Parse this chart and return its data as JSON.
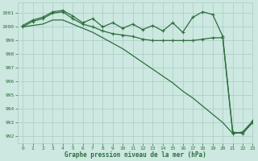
{
  "bg_color": "#cce8e0",
  "grid_color": "#a8ccc4",
  "line_color": "#2d6e3e",
  "xlabel": "Graphe pression niveau de la mer (hPa)",
  "xlim": [
    -0.5,
    23
  ],
  "ylim": [
    991.5,
    1001.8
  ],
  "yticks": [
    992,
    993,
    994,
    995,
    996,
    997,
    998,
    999,
    1000,
    1001
  ],
  "xticks": [
    0,
    1,
    2,
    3,
    4,
    5,
    6,
    7,
    8,
    9,
    10,
    11,
    12,
    13,
    14,
    15,
    16,
    17,
    18,
    19,
    20,
    21,
    22,
    23
  ],
  "s1_x": [
    0,
    1,
    2,
    3,
    4,
    5,
    6,
    7,
    8,
    9,
    10,
    11,
    12,
    13,
    14,
    15,
    16,
    17,
    18,
    19,
    20,
    21,
    22,
    23
  ],
  "s1_y": [
    1000.1,
    1000.5,
    1000.7,
    1001.1,
    1001.2,
    1000.8,
    1000.3,
    1000.6,
    1000.0,
    1000.3,
    999.9,
    1000.2,
    999.8,
    1000.1,
    999.7,
    1000.3,
    999.6,
    1000.7,
    1001.1,
    1000.9,
    999.3,
    992.3,
    992.2,
    993.0
  ],
  "s2_x": [
    0,
    1,
    2,
    3,
    4,
    5,
    6,
    7,
    8,
    9,
    10,
    11,
    12,
    13,
    14,
    15,
    16,
    17,
    18,
    19,
    20,
    21,
    22,
    23
  ],
  "s2_y": [
    1000.0,
    1000.4,
    1000.6,
    1001.0,
    1001.1,
    1000.6,
    1000.2,
    1000.0,
    999.7,
    999.5,
    999.4,
    999.3,
    999.1,
    999.0,
    999.0,
    999.0,
    999.0,
    999.0,
    999.1,
    999.2,
    999.2,
    992.2,
    992.3,
    993.1
  ],
  "s3_x": [
    0,
    1,
    2,
    3,
    4,
    5,
    6,
    7,
    8,
    9,
    10,
    11,
    12,
    13,
    14,
    15,
    16,
    17,
    18,
    19,
    20,
    21,
    22,
    23
  ],
  "s3_y": [
    1000.0,
    1000.1,
    1000.2,
    1000.5,
    1000.5,
    1000.2,
    999.9,
    999.6,
    999.2,
    998.8,
    998.4,
    997.9,
    997.4,
    996.9,
    996.4,
    995.9,
    995.3,
    994.8,
    994.2,
    993.6,
    993.0,
    992.2,
    992.3,
    993.1
  ]
}
